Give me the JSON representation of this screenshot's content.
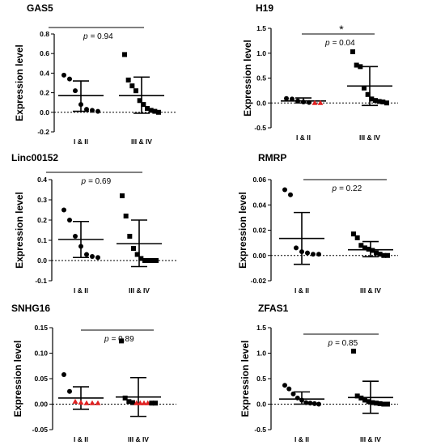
{
  "colors": {
    "ink": "#000000",
    "highlight": "#e02020"
  },
  "chart_data": [
    {
      "type": "scatter",
      "title": "GAS5",
      "ylabel": "Expression level",
      "categories": [
        "I & II",
        "III & IV"
      ],
      "ylim": [
        -0.2,
        0.8
      ],
      "yticks": [
        "-0.2",
        "0.0",
        "0.2",
        "0.4",
        "0.6",
        "0.8"
      ],
      "yticks_num": [
        -0.2,
        0,
        0.2,
        0.4,
        0.6,
        0.8
      ],
      "p_text": "= 0.94",
      "p_symbol": "p",
      "star": "",
      "series": [
        {
          "marker": "circle",
          "values": [
            0.38,
            0.34,
            0.22,
            0.08,
            0.03,
            0.02,
            0.01
          ],
          "highlight": []
        },
        {
          "marker": "square",
          "values": [
            0.59,
            0.33,
            0.27,
            0.22,
            0.12,
            0.08,
            0.04,
            0.02,
            0.01,
            0.0
          ],
          "highlight": []
        }
      ],
      "mean": [
        0.17,
        0.17
      ],
      "sd_low": [
        0.01,
        -0.01
      ],
      "sd_high": [
        0.32,
        0.36
      ]
    },
    {
      "type": "scatter",
      "title": "H19",
      "ylabel": "Expression level",
      "categories": [
        "I & II",
        "III & IV"
      ],
      "ylim": [
        -0.5,
        1.5
      ],
      "yticks": [
        "-0.5",
        "0.0",
        "0.5",
        "1.0",
        "1.5"
      ],
      "yticks_num": [
        -0.5,
        0,
        0.5,
        1.0,
        1.5
      ],
      "p_text": "= 0.04",
      "p_symbol": "p",
      "star": "*",
      "series": [
        {
          "marker": "circle",
          "values": [
            0.09,
            0.08,
            0.04,
            0.02,
            0.01,
            0.0,
            0.0
          ],
          "highlight": [
            5,
            6
          ]
        },
        {
          "marker": "square",
          "values": [
            1.03,
            0.76,
            0.73,
            0.3,
            0.17,
            0.08,
            0.05,
            0.03,
            0.02,
            0.0
          ],
          "highlight": []
        }
      ],
      "mean": [
        0.04,
        0.34
      ],
      "sd_low": [
        0.0,
        -0.05
      ],
      "sd_high": [
        0.1,
        0.73
      ]
    },
    {
      "type": "scatter",
      "title": "Linc00152",
      "ylabel": "Expression level",
      "categories": [
        "I & II",
        "III & IV"
      ],
      "ylim": [
        -0.1,
        0.4
      ],
      "yticks": [
        "-0.1",
        "0.0",
        "0.1",
        "0.2",
        "0.3",
        "0.4"
      ],
      "yticks_num": [
        -0.1,
        0,
        0.1,
        0.2,
        0.3,
        0.4
      ],
      "p_text": "= 0.69",
      "p_symbol": "p",
      "star": "",
      "series": [
        {
          "marker": "circle",
          "values": [
            0.25,
            0.2,
            0.12,
            0.07,
            0.03,
            0.02,
            0.015
          ],
          "highlight": []
        },
        {
          "marker": "square",
          "values": [
            0.32,
            0.22,
            0.12,
            0.06,
            0.03,
            0.01,
            0.0,
            0.0,
            0.0,
            0.0
          ],
          "highlight": []
        }
      ],
      "mean": [
        0.104,
        0.083
      ],
      "sd_low": [
        0.015,
        -0.03
      ],
      "sd_high": [
        0.193,
        0.2
      ]
    },
    {
      "type": "scatter",
      "title": "RMRP",
      "ylabel": "Expression level",
      "categories": [
        "I & II",
        "III & IV"
      ],
      "ylim": [
        -0.02,
        0.06
      ],
      "yticks": [
        "-0.02",
        "0.00",
        "0.02",
        "0.04",
        "0.06"
      ],
      "yticks_num": [
        -0.02,
        0,
        0.02,
        0.04,
        0.06
      ],
      "p_text": "= 0.22",
      "p_symbol": "p",
      "star": "",
      "series": [
        {
          "marker": "circle",
          "values": [
            0.052,
            0.048,
            0.006,
            0.003,
            0.002,
            0.001,
            0.001
          ],
          "highlight": []
        },
        {
          "marker": "square",
          "values": [
            0.017,
            0.014,
            0.008,
            0.006,
            0.005,
            0.004,
            0.002,
            0.001,
            0.0,
            0.0
          ],
          "highlight": []
        }
      ],
      "mean": [
        0.0135,
        0.0045
      ],
      "sd_low": [
        -0.007,
        -0.001
      ],
      "sd_high": [
        0.034,
        0.011
      ]
    },
    {
      "type": "scatter",
      "title": "SNHG16",
      "ylabel": "Expression level",
      "categories": [
        "I & II",
        "III & IV"
      ],
      "ylim": [
        -0.05,
        0.15
      ],
      "yticks": [
        "-0.05",
        "0.00",
        "0.05",
        "0.10",
        "0.15"
      ],
      "yticks_num": [
        -0.05,
        0,
        0.05,
        0.1,
        0.15
      ],
      "p_text": "= 0.89",
      "p_symbol": "p",
      "star": "",
      "series": [
        {
          "marker": "circle",
          "values": [
            0.058,
            0.025,
            0.005,
            0.003,
            0.002,
            0.002,
            0.002
          ],
          "highlight": [
            2,
            3,
            4,
            5,
            6
          ]
        },
        {
          "marker": "square",
          "values": [
            0.124,
            0.012,
            0.005,
            0.003,
            0.002,
            0.002,
            0.002,
            0.002,
            0.002,
            0.002
          ],
          "highlight": [
            4,
            5,
            6,
            7
          ]
        }
      ],
      "mean": [
        0.012,
        0.014
      ],
      "sd_low": [
        -0.01,
        -0.024
      ],
      "sd_high": [
        0.034,
        0.052
      ]
    },
    {
      "type": "scatter",
      "title": "ZFAS1",
      "ylabel": "Expression level",
      "categories": [
        "I & II",
        "III & IV"
      ],
      "ylim": [
        -0.5,
        1.5
      ],
      "yticks": [
        "-0.5",
        "0.0",
        "0.5",
        "1.0",
        "1.5"
      ],
      "yticks_num": [
        -0.5,
        0,
        0.5,
        1.0,
        1.5
      ],
      "p_text": "= 0.85",
      "p_symbol": "p",
      "star": "",
      "series": [
        {
          "marker": "circle",
          "values": [
            0.37,
            0.3,
            0.2,
            0.12,
            0.08,
            0.03,
            0.02,
            0.01,
            0.0
          ],
          "highlight": []
        },
        {
          "marker": "square",
          "values": [
            1.04,
            0.16,
            0.12,
            0.08,
            0.05,
            0.03,
            0.02,
            0.01,
            0.0,
            0.0
          ],
          "highlight": []
        }
      ],
      "mean": [
        0.1,
        0.13
      ],
      "sd_low": [
        0.0,
        -0.18
      ],
      "sd_high": [
        0.24,
        0.45
      ]
    }
  ]
}
